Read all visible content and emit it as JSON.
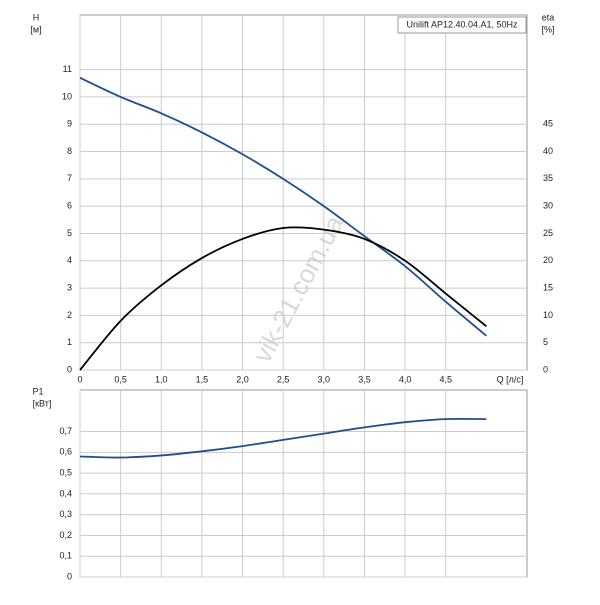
{
  "chart_data": [
    {
      "type": "line",
      "annotation": "Unilift AP12.40.04.A1, 50Hz",
      "y_label": "H",
      "y_unit": "[м]",
      "y2_label": "eta",
      "y2_unit": "[%]",
      "x_label": "Q [л/с]",
      "watermark": "vik-21.com.ua",
      "x": [
        0,
        0.5,
        1.0,
        1.5,
        2.0,
        2.5,
        3.0,
        3.5,
        4.0,
        4.5,
        5.0
      ],
      "series": [
        {
          "color": "#1f4e8c",
          "values": [
            10.7,
            10.0,
            9.4,
            8.7,
            7.9,
            7.0,
            6.0,
            4.9,
            3.8,
            2.5,
            1.25
          ]
        },
        {
          "color": "#000000",
          "axis": "y2",
          "values": [
            0,
            9,
            15.5,
            20.5,
            24,
            26,
            25.7,
            24,
            20,
            14,
            8
          ]
        }
      ],
      "xlim": [
        0,
        5.5
      ],
      "xticks": [
        0,
        {
          "value": 0.5,
          "label": "0,5"
        },
        {
          "value": 1.0,
          "label": "1,0"
        },
        {
          "value": 1.5,
          "label": "1,5"
        },
        {
          "value": 2.0,
          "label": "2,0"
        },
        {
          "value": 2.5,
          "label": "2,5"
        },
        {
          "value": 3.0,
          "label": "3,0"
        },
        {
          "value": 3.5,
          "label": "3,5"
        },
        {
          "value": 4.0,
          "label": "4,0"
        },
        {
          "value": 4.5,
          "label": "4,5"
        }
      ],
      "ylim": [
        0,
        13
      ],
      "yticks": [
        0,
        1,
        2,
        3,
        4,
        5,
        6,
        7,
        8,
        9,
        10,
        11
      ],
      "y2lim": [
        0,
        65
      ],
      "y2ticks": [
        0,
        5,
        10,
        15,
        20,
        25,
        30,
        35,
        40,
        45
      ],
      "grid": true
    },
    {
      "type": "line",
      "y_label": "P1",
      "y_unit": "[кВт]",
      "x": [
        0,
        0.5,
        1.0,
        1.5,
        2.0,
        2.5,
        3.0,
        3.5,
        4.0,
        4.5,
        5.0
      ],
      "series": [
        {
          "color": "#1f4e8c",
          "values": [
            0.58,
            0.575,
            0.585,
            0.605,
            0.63,
            0.66,
            0.69,
            0.72,
            0.745,
            0.76,
            0.76
          ]
        }
      ],
      "xlim": [
        0,
        5.5
      ],
      "ylim": [
        0,
        0.9
      ],
      "yticks": [
        0,
        {
          "value": 0.1,
          "label": "0,1"
        },
        {
          "value": 0.2,
          "label": "0,2"
        },
        {
          "value": 0.3,
          "label": "0,3"
        },
        {
          "value": 0.4,
          "label": "0,4"
        },
        {
          "value": 0.5,
          "label": "0,5"
        },
        {
          "value": 0.6,
          "label": "0,6"
        },
        {
          "value": 0.7,
          "label": "0,7"
        }
      ],
      "grid": true
    }
  ]
}
